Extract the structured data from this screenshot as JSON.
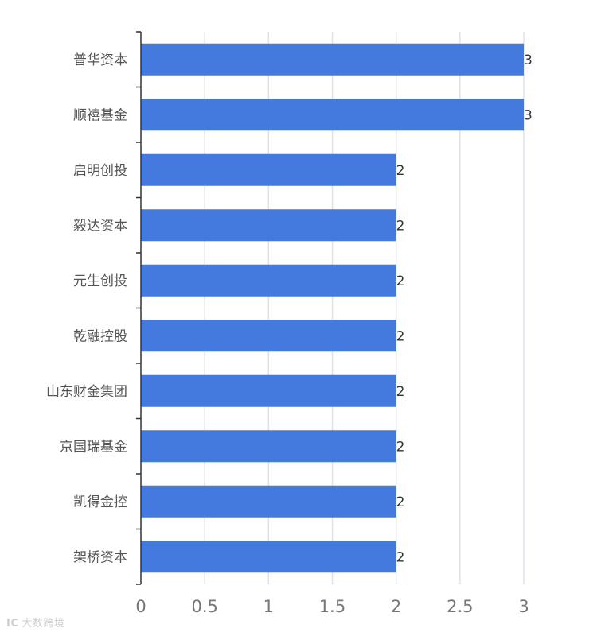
{
  "chart_data": {
    "type": "bar",
    "orientation": "horizontal",
    "categories": [
      "普华资本",
      "顺禧基金",
      "启明创投",
      "毅达资本",
      "元生创投",
      "乾融控股",
      "山东财金集团",
      "京国瑞基金",
      "凯得金控",
      "架桥资本"
    ],
    "values": [
      3,
      3,
      2,
      2,
      2,
      2,
      2,
      2,
      2,
      2
    ],
    "data_labels": [
      "3",
      "3",
      "2",
      "2",
      "2",
      "2",
      "2",
      "2",
      "2",
      "2"
    ],
    "x_ticks": [
      "0",
      "0.5",
      "1",
      "1.5",
      "2",
      "2.5",
      "3"
    ],
    "xlim": [
      0,
      3
    ],
    "grid": "vertical",
    "bar_color": "#4479de",
    "title": "",
    "xlabel": "",
    "ylabel": ""
  },
  "watermark": {
    "logo": "IC",
    "text": "大数跨境"
  }
}
